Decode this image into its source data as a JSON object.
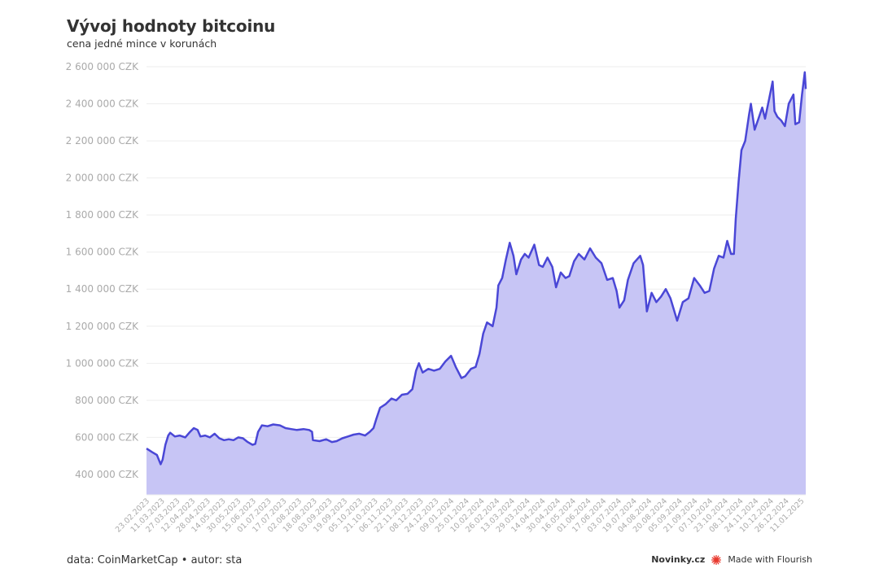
{
  "header": {
    "title": "Vývoj hodnoty bitcoinu",
    "subtitle": "cena jedné mince v korunách"
  },
  "footer": {
    "source": "data: CoinMarketCap • autor: sta",
    "brand": "Novinky.cz",
    "made_with": "Made with Flourish"
  },
  "colors": {
    "line": "#4a47d6",
    "fill": "#c7c5f5",
    "grid": "#eeeeee",
    "tick": "#aaaaaa",
    "flourish": "#e8372c"
  },
  "chart_data": {
    "type": "area",
    "title": "Vývoj hodnoty bitcoinu",
    "subtitle": "cena jedné mince v korunách",
    "xlabel": "",
    "ylabel": "",
    "grid": true,
    "legend": "none",
    "ylim": [
      290000,
      2600000
    ],
    "yticks": [
      400000,
      600000,
      800000,
      1000000,
      1200000,
      1400000,
      1600000,
      1800000,
      2000000,
      2200000,
      2400000,
      2600000
    ],
    "ytick_labels": [
      "400 000 CZK",
      "600 000 CZK",
      "800 000 CZK",
      "1 000 000 CZK",
      "1 200 000 CZK",
      "1 400 000 CZK",
      "1 600 000 CZK",
      "1 800 000 CZK",
      "2 000 000 CZK",
      "2 200 000 CZK",
      "2 400 000 CZK",
      "2 600 000 CZK"
    ],
    "x_range": [
      "2023-02-23",
      "2025-01-20"
    ],
    "xtick_labels": [
      "23.02.2023",
      "11.03.2023",
      "27.03.2023",
      "12.04.2023",
      "28.04.2023",
      "14.05.2023",
      "30.05.2023",
      "15.06.2023",
      "01.07.2023",
      "17.07.2023",
      "02.08.2023",
      "18.08.2023",
      "03.09.2023",
      "19.09.2023",
      "05.10.2023",
      "21.10.2023",
      "06.11.2023",
      "22.11.2023",
      "08.12.2023",
      "24.12.2023",
      "09.01.2024",
      "25.01.2024",
      "10.02.2024",
      "26.02.2024",
      "13.03.2024",
      "29.03.2024",
      "14.04.2024",
      "30.04.2024",
      "16.05.2024",
      "01.06.2024",
      "17.06.2024",
      "03.07.2024",
      "19.07.2024",
      "04.08.2024",
      "20.08.2024",
      "05.09.2024",
      "21.09.2024",
      "07.10.2024",
      "23.10.2024",
      "08.11.2024",
      "24.11.2024",
      "10.12.2024",
      "26.12.2024",
      "11.01.2025"
    ],
    "series": [
      {
        "points": [
          [
            "2023-02-23",
            540000
          ],
          [
            "2023-03-01",
            520000
          ],
          [
            "2023-03-06",
            505000
          ],
          [
            "2023-03-10",
            455000
          ],
          [
            "2023-03-12",
            480000
          ],
          [
            "2023-03-15",
            560000
          ],
          [
            "2023-03-18",
            610000
          ],
          [
            "2023-03-20",
            625000
          ],
          [
            "2023-03-25",
            605000
          ],
          [
            "2023-03-30",
            610000
          ],
          [
            "2023-04-05",
            600000
          ],
          [
            "2023-04-10",
            630000
          ],
          [
            "2023-04-14",
            650000
          ],
          [
            "2023-04-18",
            640000
          ],
          [
            "2023-04-21",
            605000
          ],
          [
            "2023-04-26",
            610000
          ],
          [
            "2023-05-01",
            600000
          ],
          [
            "2023-05-06",
            620000
          ],
          [
            "2023-05-11",
            595000
          ],
          [
            "2023-05-16",
            585000
          ],
          [
            "2023-05-21",
            590000
          ],
          [
            "2023-05-26",
            585000
          ],
          [
            "2023-05-31",
            600000
          ],
          [
            "2023-06-05",
            595000
          ],
          [
            "2023-06-10",
            575000
          ],
          [
            "2023-06-15",
            560000
          ],
          [
            "2023-06-18",
            565000
          ],
          [
            "2023-06-21",
            630000
          ],
          [
            "2023-06-25",
            665000
          ],
          [
            "2023-07-01",
            660000
          ],
          [
            "2023-07-07",
            670000
          ],
          [
            "2023-07-14",
            665000
          ],
          [
            "2023-07-20",
            650000
          ],
          [
            "2023-07-26",
            645000
          ],
          [
            "2023-08-01",
            640000
          ],
          [
            "2023-08-08",
            645000
          ],
          [
            "2023-08-14",
            640000
          ],
          [
            "2023-08-17",
            630000
          ],
          [
            "2023-08-18",
            585000
          ],
          [
            "2023-08-25",
            580000
          ],
          [
            "2023-09-01",
            590000
          ],
          [
            "2023-09-07",
            575000
          ],
          [
            "2023-09-12",
            580000
          ],
          [
            "2023-09-18",
            595000
          ],
          [
            "2023-09-24",
            605000
          ],
          [
            "2023-09-30",
            615000
          ],
          [
            "2023-10-06",
            620000
          ],
          [
            "2023-10-12",
            610000
          ],
          [
            "2023-10-17",
            630000
          ],
          [
            "2023-10-21",
            650000
          ],
          [
            "2023-10-24",
            700000
          ],
          [
            "2023-10-28",
            760000
          ],
          [
            "2023-11-03",
            780000
          ],
          [
            "2023-11-09",
            810000
          ],
          [
            "2023-11-14",
            800000
          ],
          [
            "2023-11-20",
            830000
          ],
          [
            "2023-11-26",
            835000
          ],
          [
            "2023-12-01",
            860000
          ],
          [
            "2023-12-05",
            960000
          ],
          [
            "2023-12-08",
            1000000
          ],
          [
            "2023-12-12",
            950000
          ],
          [
            "2023-12-18",
            970000
          ],
          [
            "2023-12-24",
            960000
          ],
          [
            "2023-12-30",
            970000
          ],
          [
            "2024-01-05",
            1010000
          ],
          [
            "2024-01-11",
            1040000
          ],
          [
            "2024-01-16",
            980000
          ],
          [
            "2024-01-22",
            920000
          ],
          [
            "2024-01-26",
            930000
          ],
          [
            "2024-02-01",
            970000
          ],
          [
            "2024-02-06",
            980000
          ],
          [
            "2024-02-10",
            1050000
          ],
          [
            "2024-02-14",
            1160000
          ],
          [
            "2024-02-18",
            1220000
          ],
          [
            "2024-02-24",
            1200000
          ],
          [
            "2024-02-28",
            1300000
          ],
          [
            "2024-03-01",
            1420000
          ],
          [
            "2024-03-05",
            1460000
          ],
          [
            "2024-03-09",
            1560000
          ],
          [
            "2024-03-13",
            1650000
          ],
          [
            "2024-03-17",
            1580000
          ],
          [
            "2024-03-20",
            1480000
          ],
          [
            "2024-03-25",
            1560000
          ],
          [
            "2024-03-29",
            1590000
          ],
          [
            "2024-04-02",
            1570000
          ],
          [
            "2024-04-08",
            1640000
          ],
          [
            "2024-04-13",
            1530000
          ],
          [
            "2024-04-17",
            1520000
          ],
          [
            "2024-04-22",
            1570000
          ],
          [
            "2024-04-27",
            1520000
          ],
          [
            "2024-05-01",
            1410000
          ],
          [
            "2024-05-06",
            1490000
          ],
          [
            "2024-05-11",
            1460000
          ],
          [
            "2024-05-15",
            1470000
          ],
          [
            "2024-05-20",
            1550000
          ],
          [
            "2024-05-25",
            1590000
          ],
          [
            "2024-05-31",
            1560000
          ],
          [
            "2024-06-06",
            1620000
          ],
          [
            "2024-06-12",
            1570000
          ],
          [
            "2024-06-18",
            1540000
          ],
          [
            "2024-06-24",
            1450000
          ],
          [
            "2024-06-30",
            1460000
          ],
          [
            "2024-07-04",
            1390000
          ],
          [
            "2024-07-07",
            1300000
          ],
          [
            "2024-07-12",
            1340000
          ],
          [
            "2024-07-16",
            1450000
          ],
          [
            "2024-07-22",
            1540000
          ],
          [
            "2024-07-29",
            1580000
          ],
          [
            "2024-08-01",
            1530000
          ],
          [
            "2024-08-05",
            1280000
          ],
          [
            "2024-08-10",
            1380000
          ],
          [
            "2024-08-15",
            1330000
          ],
          [
            "2024-08-20",
            1360000
          ],
          [
            "2024-08-25",
            1400000
          ],
          [
            "2024-08-30",
            1350000
          ],
          [
            "2024-09-06",
            1230000
          ],
          [
            "2024-09-12",
            1330000
          ],
          [
            "2024-09-18",
            1350000
          ],
          [
            "2024-09-24",
            1460000
          ],
          [
            "2024-09-30",
            1420000
          ],
          [
            "2024-10-05",
            1380000
          ],
          [
            "2024-10-10",
            1390000
          ],
          [
            "2024-10-15",
            1510000
          ],
          [
            "2024-10-20",
            1580000
          ],
          [
            "2024-10-25",
            1570000
          ],
          [
            "2024-10-29",
            1660000
          ],
          [
            "2024-11-02",
            1590000
          ],
          [
            "2024-11-05",
            1590000
          ],
          [
            "2024-11-07",
            1780000
          ],
          [
            "2024-11-10",
            1980000
          ],
          [
            "2024-11-13",
            2150000
          ],
          [
            "2024-11-17",
            2200000
          ],
          [
            "2024-11-21",
            2340000
          ],
          [
            "2024-11-23",
            2400000
          ],
          [
            "2024-11-27",
            2260000
          ],
          [
            "2024-12-01",
            2320000
          ],
          [
            "2024-12-05",
            2380000
          ],
          [
            "2024-12-08",
            2320000
          ],
          [
            "2024-12-12",
            2420000
          ],
          [
            "2024-12-16",
            2520000
          ],
          [
            "2024-12-18",
            2360000
          ],
          [
            "2024-12-21",
            2330000
          ],
          [
            "2024-12-25",
            2310000
          ],
          [
            "2024-12-29",
            2280000
          ],
          [
            "2025-01-02",
            2400000
          ],
          [
            "2025-01-07",
            2450000
          ],
          [
            "2025-01-09",
            2290000
          ],
          [
            "2025-01-13",
            2300000
          ],
          [
            "2025-01-16",
            2450000
          ],
          [
            "2025-01-19",
            2570000
          ],
          [
            "2025-01-20",
            2480000
          ]
        ]
      }
    ]
  }
}
